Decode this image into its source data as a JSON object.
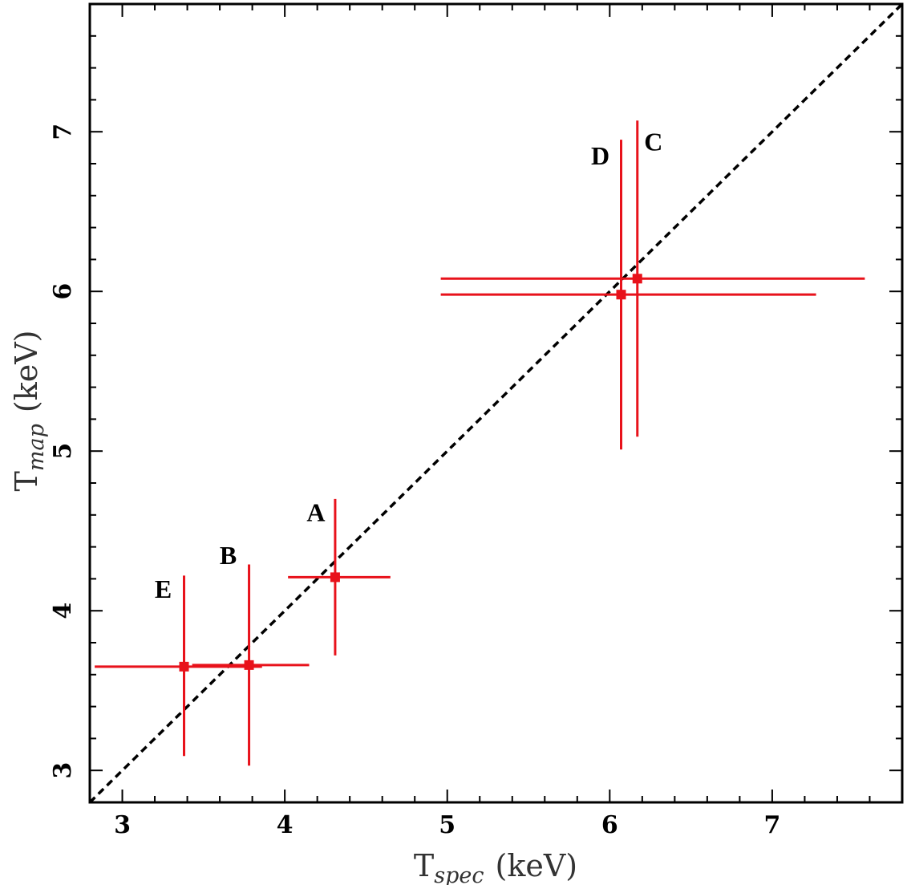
{
  "chart_data": {
    "type": "scatter",
    "title": "",
    "xlabel": {
      "main": "T",
      "sub": "spec",
      "unit": "(keV)"
    },
    "ylabel": {
      "main": "T",
      "sub": "map",
      "unit": "(keV)"
    },
    "xlim": [
      2.8,
      7.8
    ],
    "ylim": [
      2.8,
      7.8
    ],
    "xticks": [
      3,
      4,
      5,
      6,
      7
    ],
    "yticks": [
      3,
      4,
      5,
      6,
      7
    ],
    "grid": false,
    "reference_line": {
      "type": "y=x",
      "style": "dashed",
      "color": "#000000"
    },
    "marker_color": "#e8121b",
    "points": [
      {
        "label": "A",
        "x": 4.31,
        "y": 4.21,
        "xerr": [
          4.02,
          4.65
        ],
        "yerr": [
          3.72,
          4.7
        ]
      },
      {
        "label": "B",
        "x": 3.78,
        "y": 3.66,
        "xerr": [
          3.43,
          4.15
        ],
        "yerr": [
          3.03,
          4.29
        ]
      },
      {
        "label": "C",
        "x": 6.17,
        "y": 6.08,
        "xerr": [
          4.96,
          7.57
        ],
        "yerr": [
          5.09,
          7.07
        ]
      },
      {
        "label": "D",
        "x": 6.07,
        "y": 5.98,
        "xerr": [
          4.96,
          7.27
        ],
        "yerr": [
          5.01,
          6.95
        ]
      },
      {
        "label": "E",
        "x": 3.38,
        "y": 3.65,
        "xerr": [
          2.83,
          3.86
        ],
        "yerr": [
          3.09,
          4.22
        ]
      }
    ]
  }
}
